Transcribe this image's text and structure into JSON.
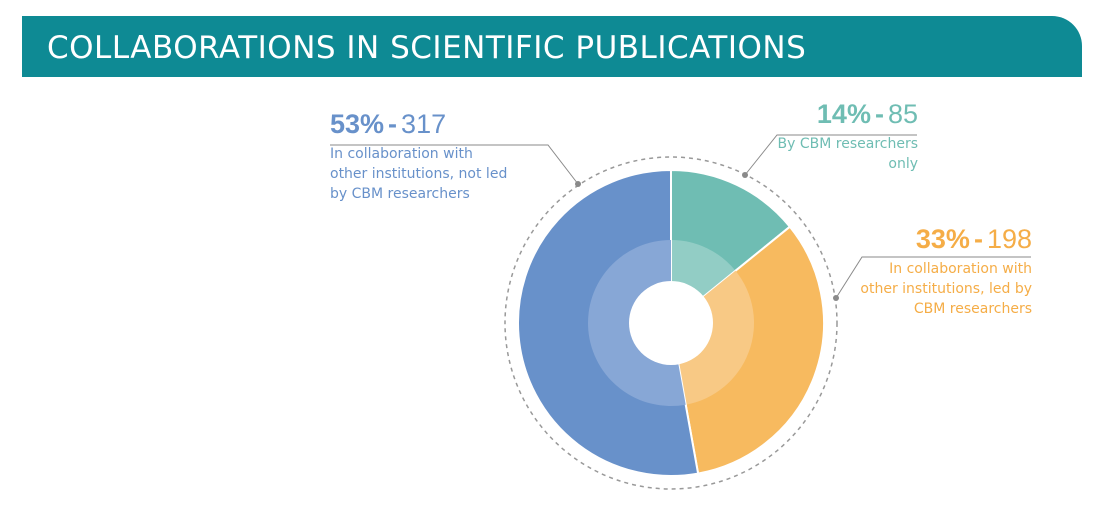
{
  "title": "COLLABORATIONS IN SCIENTIFIC PUBLICATIONS",
  "chart_data": {
    "type": "pie",
    "style": "donut",
    "slices": [
      {
        "percent_label": "14%",
        "value": 85,
        "description": "By CBM researchers only",
        "color": "#6fbdb3",
        "light_color": "#92cdc5"
      },
      {
        "percent_label": "33%",
        "value": 198,
        "description": "In collaboration with other institutions, led by CBM researchers",
        "color": "#f7ba5f",
        "light_color": "#f8c985"
      },
      {
        "percent_label": "53%",
        "value": 317,
        "description": "In collaboration with other institutions, not led by CBM researchers",
        "color": "#6891ca",
        "light_color": "#87a7d6"
      }
    ]
  }
}
